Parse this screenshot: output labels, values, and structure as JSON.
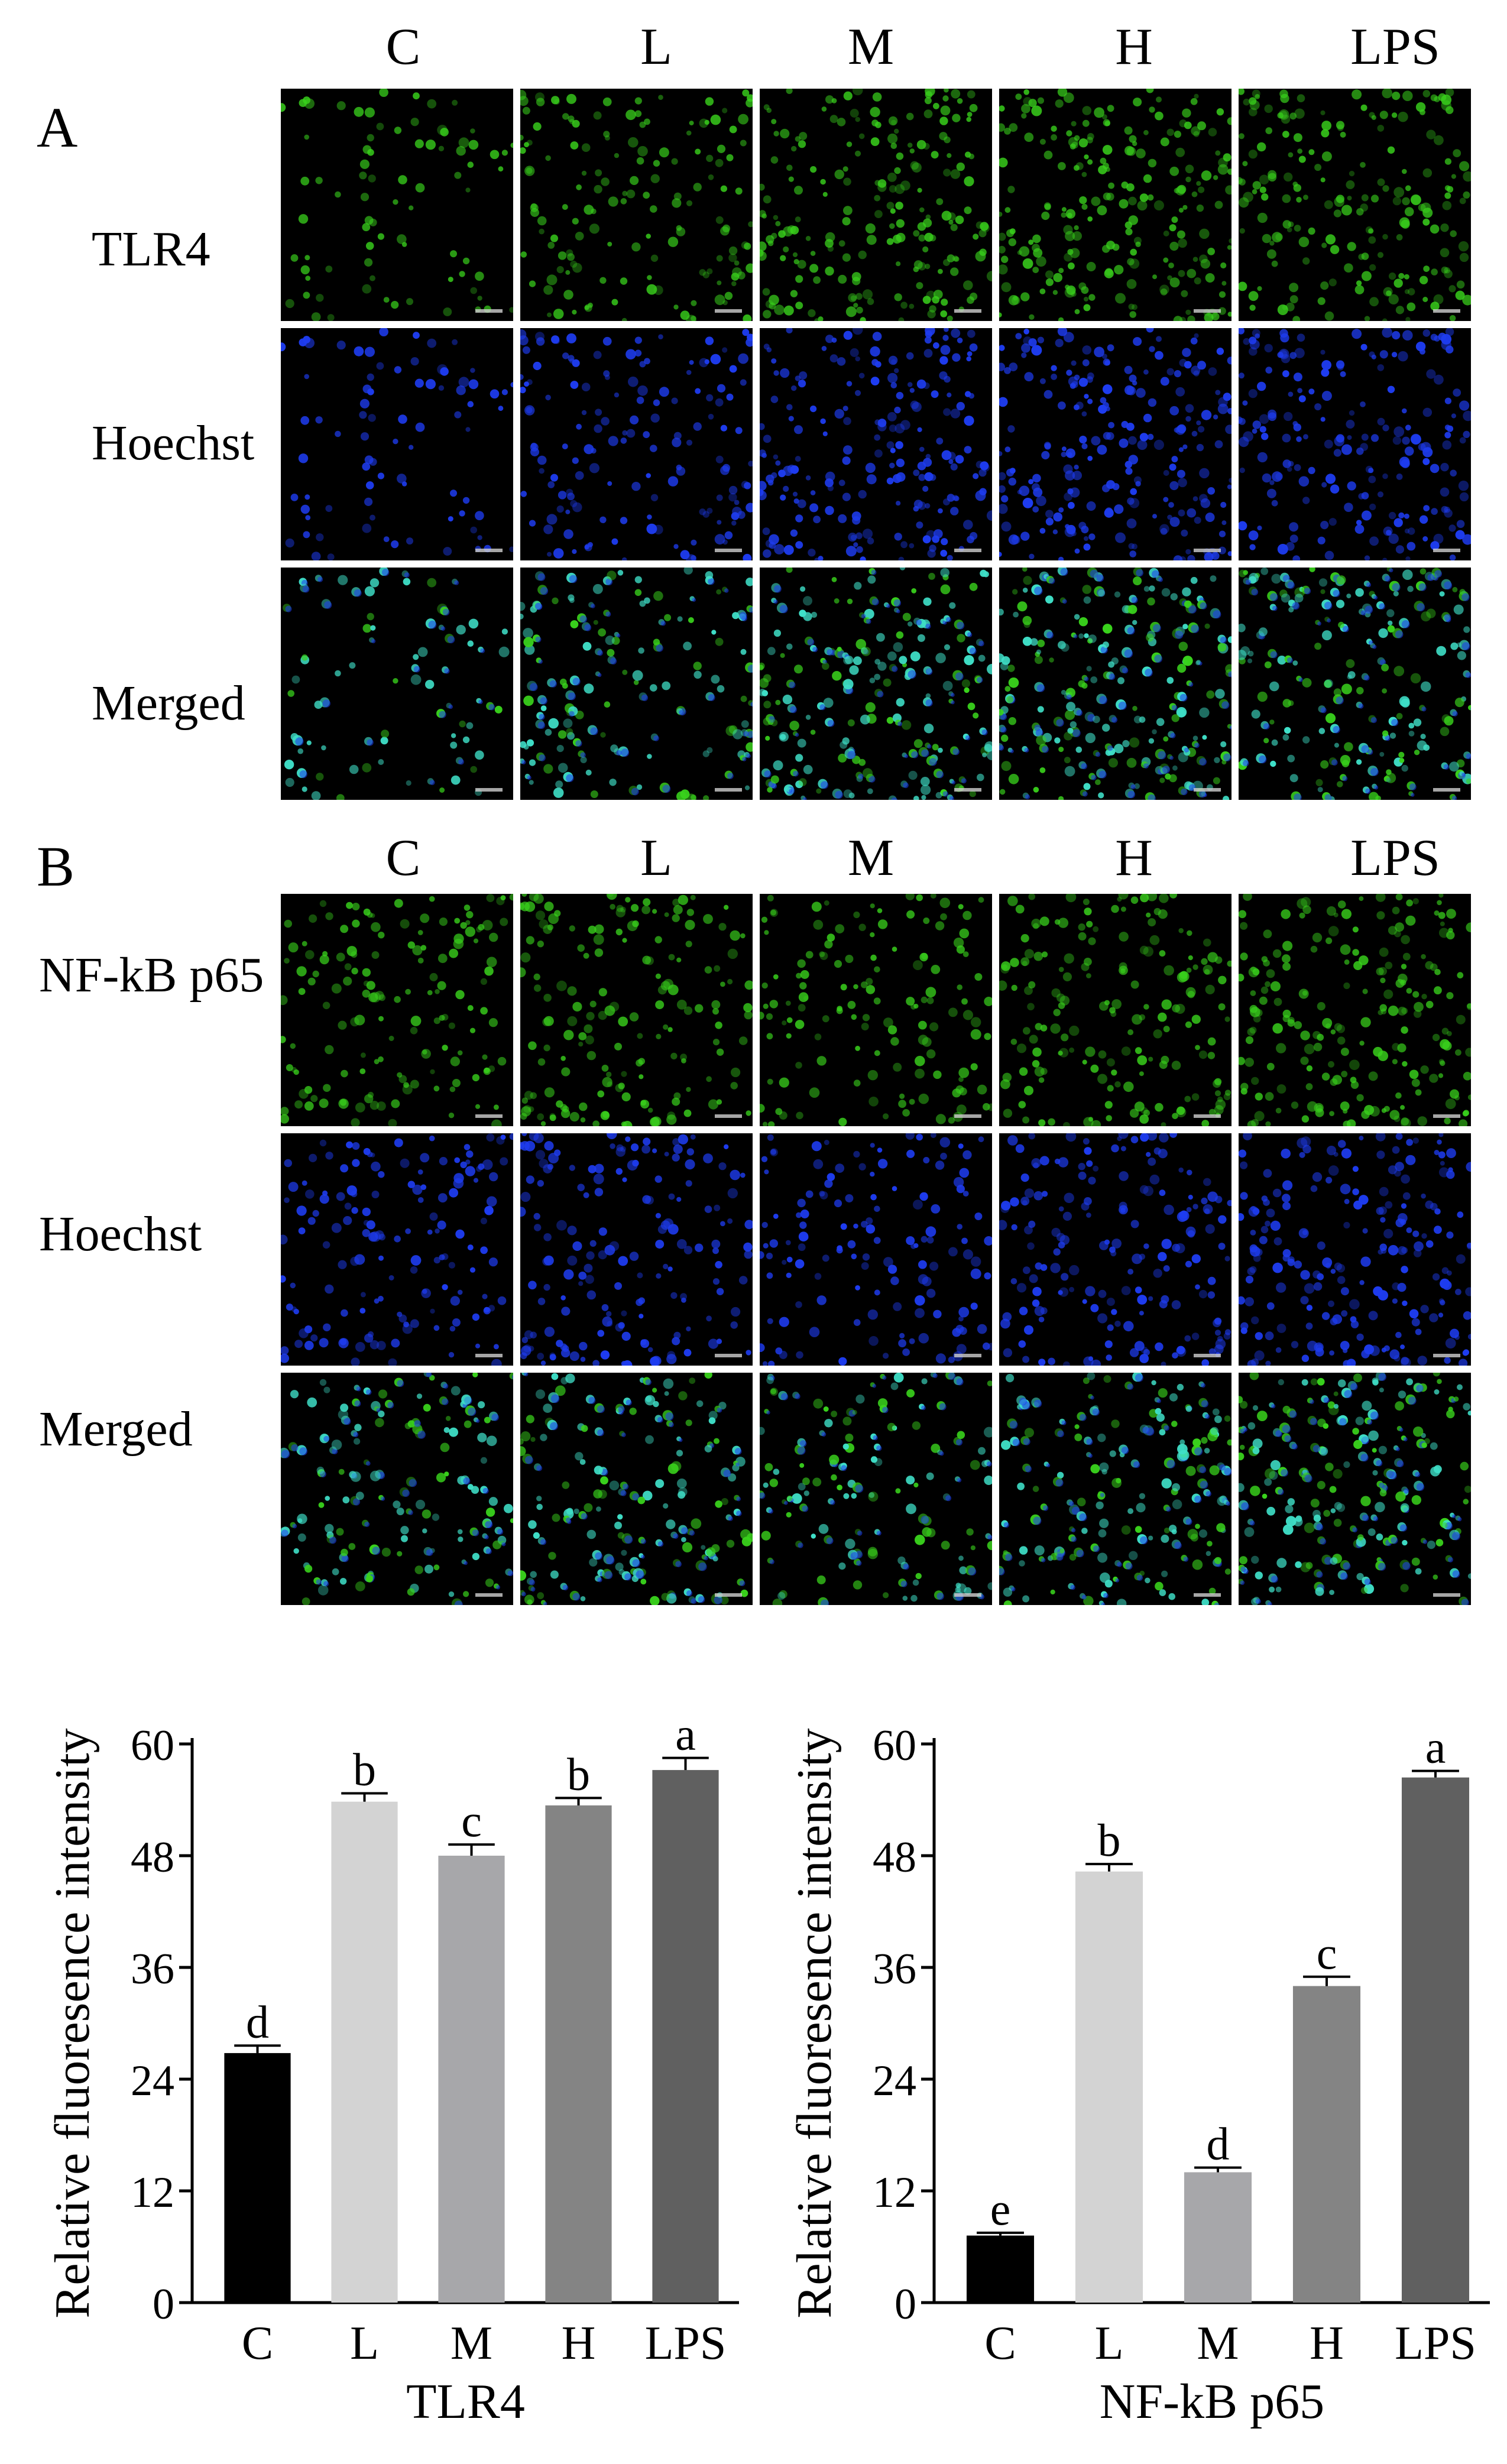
{
  "panel_a": {
    "letter": "A",
    "columns": [
      "C",
      "L",
      "M",
      "H",
      "LPS"
    ],
    "rows": [
      "TLR4",
      "Hoechst",
      "Merged"
    ]
  },
  "panel_b": {
    "letter": "B",
    "columns": [
      "C",
      "L",
      "M",
      "H",
      "LPS"
    ],
    "rows": [
      "NF-kB p65",
      "Hoechst",
      "Merged"
    ]
  },
  "colors": {
    "green": "#39d21c",
    "blue": "#1e3cf0",
    "cyan": "#3fe0c8",
    "bars": [
      "#000000",
      "#d3d3d3",
      "#a7a7aa",
      "#848484",
      "#606060"
    ]
  },
  "chart_data": [
    {
      "type": "bar",
      "categories": [
        "C",
        "L",
        "M",
        "H",
        "LPS"
      ],
      "values": [
        26.8,
        53.8,
        48.0,
        53.4,
        57.2
      ],
      "errors": [
        0.8,
        0.9,
        1.2,
        0.8,
        1.3
      ],
      "letters": [
        "d",
        "b",
        "c",
        "b",
        "a"
      ],
      "xlabel": "TLR4",
      "ylabel": "Relative fluoresence intensity",
      "ylim": [
        0,
        60
      ],
      "yticks": [
        "0",
        "12",
        "24",
        "36",
        "48",
        "60"
      ]
    },
    {
      "type": "bar",
      "categories": [
        "C",
        "L",
        "M",
        "H",
        "LPS"
      ],
      "values": [
        7.2,
        46.3,
        14.0,
        34.0,
        56.4
      ],
      "errors": [
        0.3,
        0.8,
        0.5,
        1.0,
        0.7
      ],
      "letters": [
        "e",
        "b",
        "d",
        "c",
        "a"
      ],
      "xlabel": "NF-kB p65",
      "ylabel": "Relative fluoresence intensity",
      "ylim": [
        0,
        60
      ],
      "yticks": [
        "0",
        "12",
        "24",
        "36",
        "48",
        "60"
      ]
    }
  ]
}
